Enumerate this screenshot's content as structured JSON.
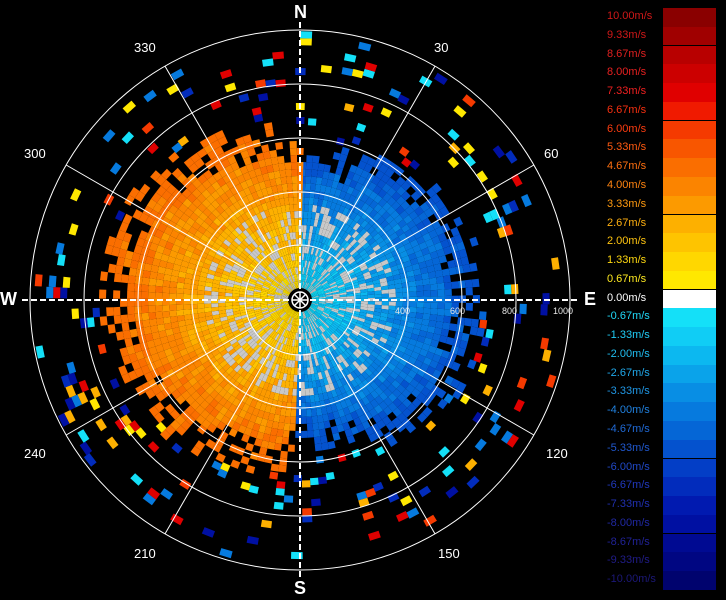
{
  "radar": {
    "compass": {
      "north": "N",
      "east": "E",
      "south": "S",
      "west": "W"
    },
    "bearings": [
      "30",
      "60",
      "120",
      "150",
      "210",
      "240",
      "300",
      "330"
    ],
    "range_labels": [
      "400",
      "600",
      "800",
      "1000"
    ]
  },
  "legend": {
    "items": [
      {
        "label": "10.00m/s",
        "color": "#8a0000",
        "text_color": "#d01818"
      },
      {
        "label": "9.33m/s",
        "color": "#a00000",
        "text_color": "#d01818"
      },
      {
        "label": "8.67m/s",
        "color": "#b80000",
        "text_color": "#e02020"
      },
      {
        "label": "8.00m/s",
        "color": "#cc0000",
        "text_color": "#e82020"
      },
      {
        "label": "7.33m/s",
        "color": "#e00000",
        "text_color": "#f02020"
      },
      {
        "label": "6.67m/s",
        "color": "#f01a00",
        "text_color": "#f83010"
      },
      {
        "label": "6.00m/s",
        "color": "#f53a00",
        "text_color": "#ff3d10"
      },
      {
        "label": "5.33m/s",
        "color": "#f85600",
        "text_color": "#ff5a10"
      },
      {
        "label": "4.67m/s",
        "color": "#fa6e00",
        "text_color": "#ff7010"
      },
      {
        "label": "4.00m/s",
        "color": "#fb8400",
        "text_color": "#ff8410"
      },
      {
        "label": "3.33m/s",
        "color": "#fc9a00",
        "text_color": "#ff9a10"
      },
      {
        "label": "2.67m/s",
        "color": "#fdb000",
        "text_color": "#ffb010"
      },
      {
        "label": "2.00m/s",
        "color": "#fec400",
        "text_color": "#ffc410"
      },
      {
        "label": "1.33m/s",
        "color": "#ffd700",
        "text_color": "#ffd810"
      },
      {
        "label": "0.67m/s",
        "color": "#ffe800",
        "text_color": "#ffea20"
      },
      {
        "label": "0.00m/s",
        "color": "#ffffff",
        "text_color": "#ffffff"
      },
      {
        "label": "-0.67m/s",
        "color": "#14e0f8",
        "text_color": "#20d8f8"
      },
      {
        "label": "-1.33m/s",
        "color": "#10cdf5",
        "text_color": "#20ccf5"
      },
      {
        "label": "-2.00m/s",
        "color": "#0cb8f0",
        "text_color": "#20bdf0"
      },
      {
        "label": "-2.67m/s",
        "color": "#0aa3ea",
        "text_color": "#20a8ea"
      },
      {
        "label": "-3.33m/s",
        "color": "#088ee4",
        "text_color": "#2096e4"
      },
      {
        "label": "-4.00m/s",
        "color": "#067ade",
        "text_color": "#2080de"
      },
      {
        "label": "-4.67m/s",
        "color": "#0566d6",
        "text_color": "#206ad6"
      },
      {
        "label": "-5.33m/s",
        "color": "#0452ce",
        "text_color": "#2058ce"
      },
      {
        "label": "-6.00m/s",
        "color": "#033ec6",
        "text_color": "#2048c6"
      },
      {
        "label": "-6.67m/s",
        "color": "#022cbc",
        "text_color": "#2038bc"
      },
      {
        "label": "-7.33m/s",
        "color": "#011ab0",
        "text_color": "#2030b0"
      },
      {
        "label": "-8.00m/s",
        "color": "#0010a2",
        "text_color": "#2028a2"
      },
      {
        "label": "-8.67m/s",
        "color": "#000a92",
        "text_color": "#202296"
      },
      {
        "label": "-9.33m/s",
        "color": "#000682",
        "text_color": "#201c88"
      },
      {
        "label": "-10.00m/s",
        "color": "#00036e",
        "text_color": "#1c1878"
      }
    ]
  }
}
